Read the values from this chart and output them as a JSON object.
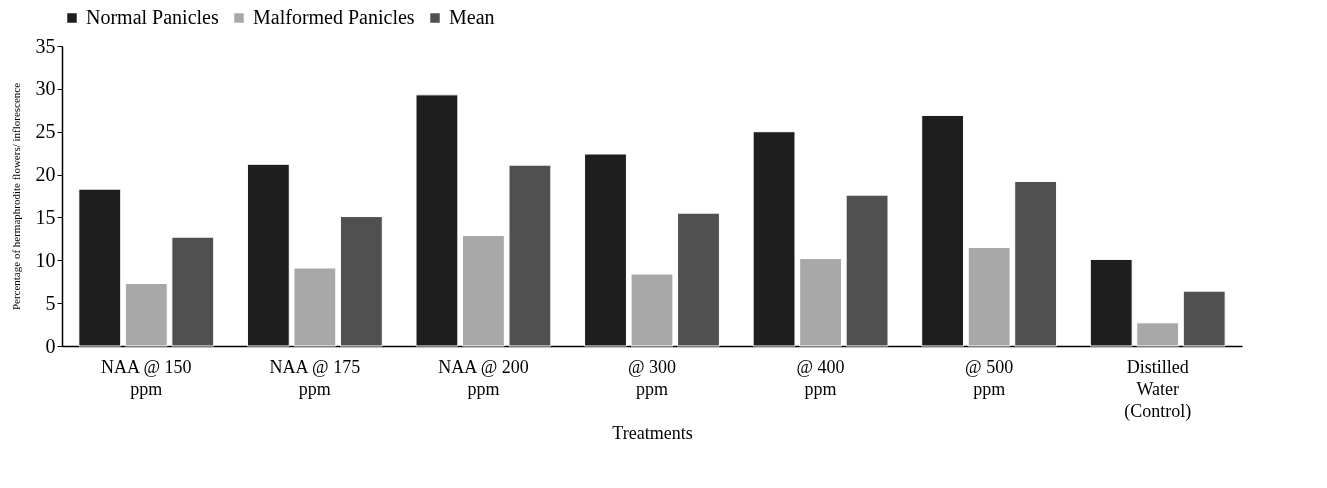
{
  "chart_data": {
    "type": "bar",
    "xlabel": "Treatments",
    "ylabel": "Percentage of hermaphrodite flowers/ inflorescence",
    "categories": [
      "NAA @ 150\nppm",
      "NAA @ 175\nppm",
      "NAA @ 200\nppm",
      "@ 300\nppm",
      "@ 400\nppm",
      "@ 500\nppm",
      "Distilled\nWater\n(Control)"
    ],
    "series": [
      {
        "name": "Normal Panicles",
        "color": "#1e1e1e",
        "values": [
          18.3,
          21.2,
          29.3,
          22.4,
          25.0,
          26.9,
          10.1
        ]
      },
      {
        "name": "Malformed Panicles",
        "color": "#a8a8a8",
        "values": [
          7.3,
          9.1,
          12.9,
          8.4,
          10.2,
          11.5,
          2.7
        ]
      },
      {
        "name": "Mean",
        "color": "#505050",
        "values": [
          12.7,
          15.1,
          21.1,
          15.5,
          17.6,
          19.2,
          6.4
        ]
      }
    ],
    "ylim": [
      0,
      35
    ],
    "yticks": [
      0,
      5,
      10,
      15,
      20,
      25,
      30,
      35
    ],
    "grid": false,
    "legend": "top"
  }
}
